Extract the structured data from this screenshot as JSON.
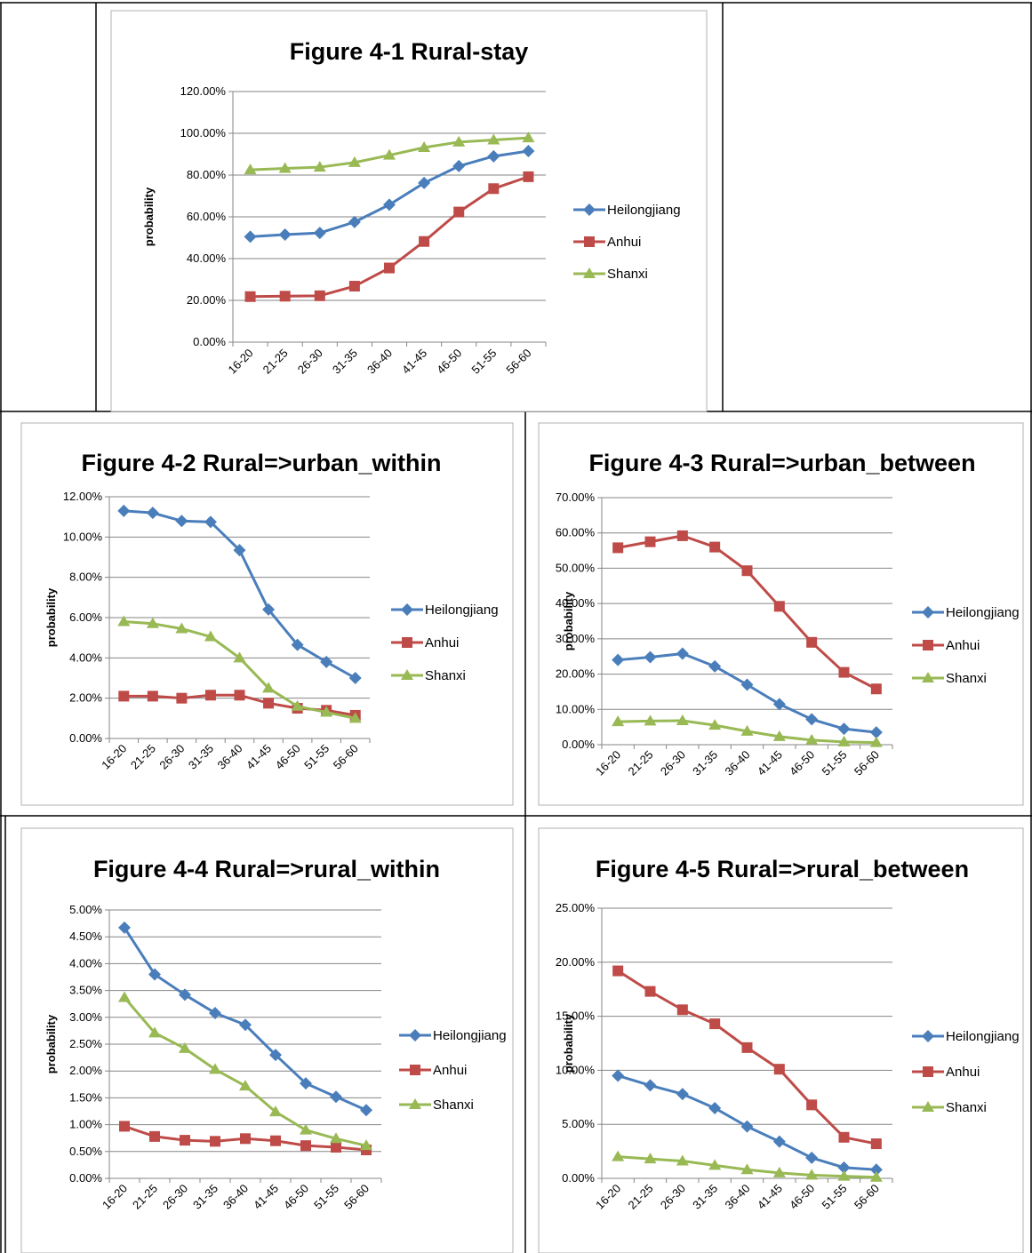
{
  "chart_data": [
    {
      "type": "line",
      "title": "Figure 4-1 Rural-stay",
      "ylabel": "probability",
      "xlabel": "",
      "categories": [
        "16-20",
        "21-25",
        "26-30",
        "31-35",
        "36-40",
        "41-45",
        "46-50",
        "51-55",
        "56-60"
      ],
      "ylim": [
        0,
        120
      ],
      "yticks": [
        "0.00%",
        "20.00%",
        "40.00%",
        "60.00%",
        "80.00%",
        "100.00%",
        "120.00%"
      ],
      "grid": true,
      "legend_position": "right",
      "series": [
        {
          "name": "Heilongjiang",
          "color": "#4a7ebb",
          "marker": "diamond",
          "values": [
            50.5,
            51.5,
            52.3,
            57.5,
            65.8,
            76.2,
            84.3,
            89,
            91.5
          ]
        },
        {
          "name": "Anhui",
          "color": "#be4b48",
          "marker": "square",
          "values": [
            21.8,
            22,
            22.2,
            26.8,
            35.5,
            48.2,
            62.3,
            73.5,
            79.2
          ]
        },
        {
          "name": "Shanxi",
          "color": "#98b954",
          "marker": "triangle",
          "values": [
            82.5,
            83.2,
            83.8,
            86,
            89.5,
            93.2,
            95.8,
            96.8,
            97.8
          ]
        }
      ]
    },
    {
      "type": "line",
      "title": "Figure 4-2 Rural=>urban_within",
      "ylabel": "probability",
      "xlabel": "",
      "categories": [
        "16-20",
        "21-25",
        "26-30",
        "31-35",
        "36-40",
        "41-45",
        "46-50",
        "51-55",
        "56-60"
      ],
      "ylim": [
        0,
        12
      ],
      "yticks": [
        "0.00%",
        "2.00%",
        "4.00%",
        "6.00%",
        "8.00%",
        "10.00%",
        "12.00%"
      ],
      "grid": true,
      "legend_position": "right",
      "series": [
        {
          "name": "Heilongjiang",
          "color": "#4a7ebb",
          "marker": "diamond",
          "values": [
            11.3,
            11.2,
            10.8,
            10.75,
            9.35,
            6.4,
            4.65,
            3.8,
            3.0
          ]
        },
        {
          "name": "Anhui",
          "color": "#be4b48",
          "marker": "square",
          "values": [
            2.1,
            2.1,
            2.0,
            2.15,
            2.15,
            1.75,
            1.5,
            1.4,
            1.15
          ]
        },
        {
          "name": "Shanxi",
          "color": "#98b954",
          "marker": "triangle",
          "values": [
            5.8,
            5.7,
            5.45,
            5.05,
            4.0,
            2.5,
            1.6,
            1.3,
            1.0
          ]
        }
      ]
    },
    {
      "type": "line",
      "title": "Figure 4-3 Rural=>urban_between",
      "ylabel": "probability",
      "xlabel": "",
      "categories": [
        "16-20",
        "21-25",
        "26-30",
        "31-35",
        "36-40",
        "41-45",
        "46-50",
        "51-55",
        "56-60"
      ],
      "ylim": [
        0,
        70
      ],
      "yticks": [
        "0.00%",
        "10.00%",
        "20.00%",
        "30.00%",
        "40.00%",
        "50.00%",
        "60.00%",
        "70.00%"
      ],
      "grid": true,
      "legend_position": "right",
      "series": [
        {
          "name": "Heilongjiang",
          "color": "#4a7ebb",
          "marker": "diamond",
          "values": [
            24,
            24.8,
            25.8,
            22.2,
            17,
            11.5,
            7.2,
            4.5,
            3.5
          ]
        },
        {
          "name": "Anhui",
          "color": "#be4b48",
          "marker": "square",
          "values": [
            55.8,
            57.5,
            59.2,
            56,
            49.3,
            39.2,
            29,
            20.5,
            15.8
          ]
        },
        {
          "name": "Shanxi",
          "color": "#98b954",
          "marker": "triangle",
          "values": [
            6.5,
            6.7,
            6.8,
            5.5,
            3.8,
            2.3,
            1.3,
            0.8,
            0.6
          ]
        }
      ]
    },
    {
      "type": "line",
      "title": "Figure 4-4 Rural=>rural_within",
      "ylabel": "probability",
      "xlabel": "",
      "categories": [
        "16-20",
        "21-25",
        "26-30",
        "31-35",
        "36-40",
        "41-45",
        "46-50",
        "51-55",
        "56-60"
      ],
      "ylim": [
        0,
        5
      ],
      "yticks": [
        "0.00%",
        "0.50%",
        "1.00%",
        "1.50%",
        "2.00%",
        "2.50%",
        "3.00%",
        "3.50%",
        "4.00%",
        "4.50%",
        "5.00%"
      ],
      "grid": true,
      "legend_position": "right",
      "series": [
        {
          "name": "Heilongjiang",
          "color": "#4a7ebb",
          "marker": "diamond",
          "values": [
            4.67,
            3.8,
            3.42,
            3.08,
            2.86,
            2.3,
            1.77,
            1.52,
            1.27
          ]
        },
        {
          "name": "Anhui",
          "color": "#be4b48",
          "marker": "square",
          "values": [
            0.97,
            0.78,
            0.71,
            0.69,
            0.74,
            0.7,
            0.61,
            0.58,
            0.53
          ]
        },
        {
          "name": "Shanxi",
          "color": "#98b954",
          "marker": "triangle",
          "values": [
            3.37,
            2.71,
            2.42,
            2.03,
            1.72,
            1.24,
            0.9,
            0.74,
            0.61
          ]
        }
      ]
    },
    {
      "type": "line",
      "title": "Figure 4-5 Rural=>rural_between",
      "ylabel": "probability",
      "xlabel": "",
      "categories": [
        "16-20",
        "21-25",
        "26-30",
        "31-35",
        "36-40",
        "41-45",
        "46-50",
        "51-55",
        "56-60"
      ],
      "ylim": [
        0,
        25
      ],
      "yticks": [
        "0.00%",
        "5.00%",
        "10.00%",
        "15.00%",
        "20.00%",
        "25.00%"
      ],
      "grid": true,
      "legend_position": "right",
      "series": [
        {
          "name": "Heilongjiang",
          "color": "#4a7ebb",
          "marker": "diamond",
          "values": [
            9.5,
            8.6,
            7.8,
            6.5,
            4.8,
            3.4,
            1.9,
            1.0,
            0.8
          ]
        },
        {
          "name": "Anhui",
          "color": "#be4b48",
          "marker": "square",
          "values": [
            19.2,
            17.3,
            15.6,
            14.3,
            12.1,
            10.1,
            6.8,
            3.8,
            3.2
          ]
        },
        {
          "name": "Shanxi",
          "color": "#98b954",
          "marker": "triangle",
          "values": [
            2.0,
            1.8,
            1.6,
            1.2,
            0.8,
            0.5,
            0.3,
            0.2,
            0.1
          ]
        }
      ]
    }
  ]
}
